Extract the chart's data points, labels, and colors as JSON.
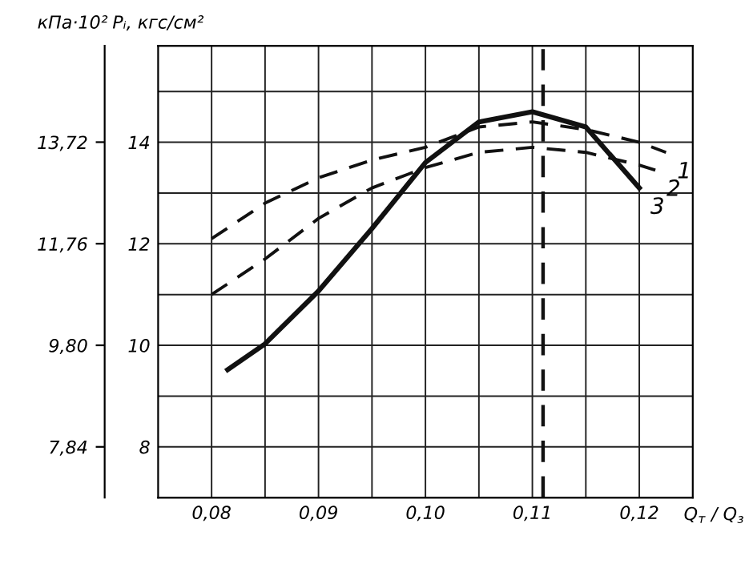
{
  "chart_data": {
    "type": "line",
    "xlabel": "Q$_{т}$ / Q$_{з}$",
    "ylabel": "Pᵢ, кгс/см²",
    "y2label": "кПа·10²",
    "xlim": [
      0.075,
      0.125
    ],
    "xticks": [
      {
        "value": 0.08,
        "label": "0,08"
      },
      {
        "value": 0.085,
        "label": null
      },
      {
        "value": 0.09,
        "label": "0,09"
      },
      {
        "value": 0.095,
        "label": null
      },
      {
        "value": 0.1,
        "label": "0,10"
      },
      {
        "value": 0.105,
        "label": null
      },
      {
        "value": 0.11,
        "label": "0,11"
      },
      {
        "value": 0.115,
        "label": null
      },
      {
        "value": 0.12,
        "label": "0,12"
      }
    ],
    "ylim": [
      7,
      15.9
    ],
    "yticks": [
      8,
      {
        "value": 9,
        "label": null
      },
      10,
      {
        "value": 11,
        "label": null
      },
      12,
      {
        "value": 13,
        "label": null
      },
      14,
      {
        "value": 15,
        "label": null
      }
    ],
    "y2lim": [
      6.86,
      15.58
    ],
    "y2ticks": [
      {
        "value": 7.84,
        "label": "7,84"
      },
      {
        "value": 9.8,
        "label": "9,80"
      },
      {
        "value": 11.76,
        "label": "11,76"
      },
      {
        "value": 13.72,
        "label": "13,72"
      }
    ],
    "grid": true,
    "legend": false,
    "marker": "none",
    "series": [
      {
        "color": "#111111",
        "line_style": "dashed",
        "x": [
          0.08,
          0.085,
          0.09,
          0.095,
          0.1,
          0.105,
          0.11,
          0.115,
          0.12,
          0.1225
        ],
        "values": [
          12.1,
          12.8,
          13.3,
          13.65,
          13.9,
          14.3,
          14.4,
          14.25,
          14.0,
          13.8
        ]
      },
      {
        "color": "#111111",
        "line_style": "dashed",
        "x": [
          0.08,
          0.085,
          0.09,
          0.095,
          0.1,
          0.105,
          0.11,
          0.115,
          0.12,
          0.1215
        ],
        "values": [
          11.0,
          11.7,
          12.5,
          13.1,
          13.5,
          13.8,
          13.9,
          13.8,
          13.55,
          13.45
        ]
      },
      {
        "color": "#111111",
        "line_style": "solid",
        "x": [
          0.0815,
          0.085,
          0.09,
          0.095,
          0.1,
          0.105,
          0.11,
          0.115,
          0.12
        ],
        "values": [
          9.52,
          10.03,
          11.07,
          12.3,
          13.6,
          14.4,
          14.6,
          14.3,
          13.1
        ]
      }
    ],
    "ref_lines": [
      {
        "axis": "x",
        "value": 0.111,
        "line_style": "dashed",
        "color": "#111111"
      }
    ],
    "annotations": [
      {
        "text": "1",
        "x": 0.1225,
        "y": 13.8
      },
      {
        "text": "2",
        "x": 0.1215,
        "y": 13.45
      },
      {
        "text": "3",
        "x": 0.12,
        "y": 13.1
      }
    ]
  }
}
